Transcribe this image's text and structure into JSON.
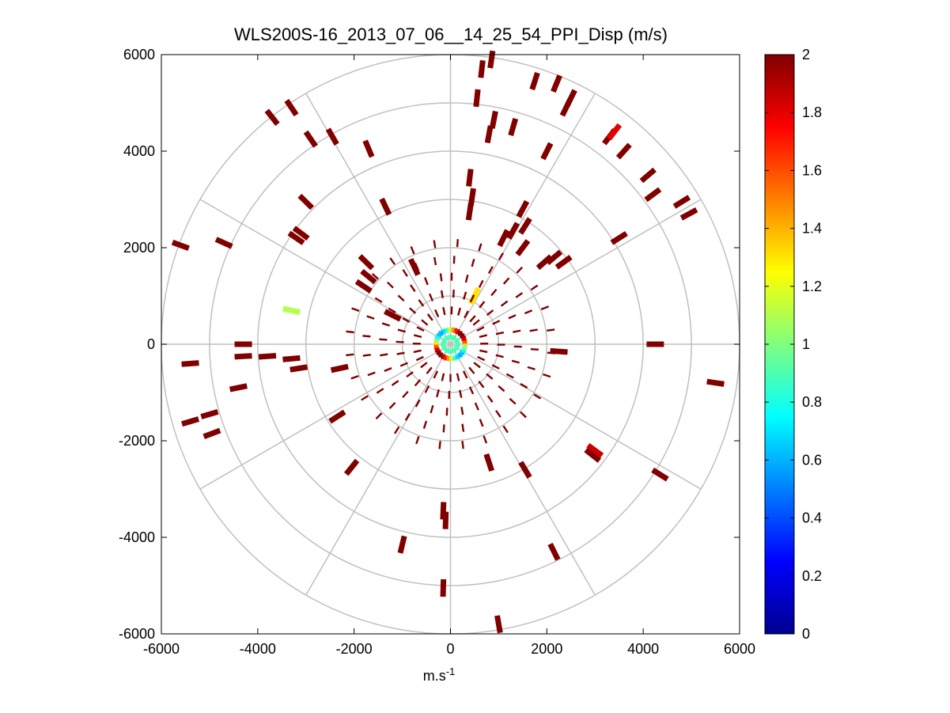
{
  "chart_data": {
    "type": "polar-scatter",
    "title": "WLS200S-16_2013_07_06__14_25_54_PPI_Disp (m/s)",
    "xlabel": "m.s",
    "xlabel_superscript": "-1",
    "ylabel": "",
    "xlim": [
      -6000,
      6000
    ],
    "ylim": [
      -6000,
      6000
    ],
    "xticks": [
      -6000,
      -4000,
      -2000,
      0,
      2000,
      4000,
      6000
    ],
    "yticks": [
      -6000,
      -4000,
      -2000,
      0,
      2000,
      4000,
      6000
    ],
    "xtick_labels": [
      "-6000",
      "-4000",
      "-2000",
      "0",
      "2000",
      "4000",
      "6000"
    ],
    "ytick_labels": [
      "-6000",
      "-4000",
      "-2000",
      "0",
      "2000",
      "4000",
      "6000"
    ],
    "polar_grid": {
      "ring_radii": [
        1000,
        2000,
        3000,
        4000,
        5000,
        6000
      ],
      "spoke_angles_deg": [
        0,
        30,
        60,
        90,
        120,
        150,
        180,
        210,
        240,
        270,
        300,
        330
      ]
    },
    "colorbar": {
      "min": 0,
      "max": 2,
      "ticks": [
        0,
        0.2,
        0.4,
        0.6,
        0.8,
        1,
        1.2,
        1.4,
        1.6,
        1.8,
        2
      ],
      "tick_labels": [
        "0",
        "0.2",
        "0.4",
        "0.6",
        "0.8",
        "1",
        "1.2",
        "1.4",
        "1.6",
        "1.8",
        "2"
      ],
      "colormap": "jet"
    },
    "dark_value": 2.0,
    "bright_features": [
      {
        "x": -3300,
        "y": 700,
        "value": 1.1
      },
      {
        "x": 3400,
        "y": 4400,
        "value": 1.8
      },
      {
        "x": 3000,
        "y": -2200,
        "value": 1.85
      },
      {
        "x": 500,
        "y": 1000,
        "value": 1.3
      }
    ],
    "center_cluster": {
      "x": 0,
      "y": 0,
      "radius": 300,
      "min_value": 0.6,
      "max_value": 2
    },
    "scatter_points": [
      {
        "x": 850,
        "y": 5900
      },
      {
        "x": 650,
        "y": 5700
      },
      {
        "x": 1750,
        "y": 5450
      },
      {
        "x": 2200,
        "y": 5400
      },
      {
        "x": 550,
        "y": 5100
      },
      {
        "x": 2500,
        "y": 5100
      },
      {
        "x": 2400,
        "y": 4900
      },
      {
        "x": 900,
        "y": 4650
      },
      {
        "x": 1300,
        "y": 4500
      },
      {
        "x": 800,
        "y": 4350
      },
      {
        "x": 2000,
        "y": 4000
      },
      {
        "x": 3300,
        "y": 4300
      },
      {
        "x": 3600,
        "y": 4000
      },
      {
        "x": 4100,
        "y": 3500
      },
      {
        "x": 4800,
        "y": 2950
      },
      {
        "x": 4950,
        "y": 2700
      },
      {
        "x": 4200,
        "y": 3100
      },
      {
        "x": 3500,
        "y": 2200
      },
      {
        "x": 2150,
        "y": 1800
      },
      {
        "x": 2350,
        "y": 1700
      },
      {
        "x": 1950,
        "y": 1700
      },
      {
        "x": 400,
        "y": 3450
      },
      {
        "x": 450,
        "y": 3050
      },
      {
        "x": 400,
        "y": 2750
      },
      {
        "x": 1500,
        "y": 2800
      },
      {
        "x": 1550,
        "y": 2450
      },
      {
        "x": 1300,
        "y": 2350
      },
      {
        "x": 1100,
        "y": 2200
      },
      {
        "x": 1500,
        "y": 2000
      },
      {
        "x": 4250,
        "y": 0
      },
      {
        "x": 5500,
        "y": -800
      },
      {
        "x": 2250,
        "y": -150
      },
      {
        "x": 4350,
        "y": -2700
      },
      {
        "x": 2950,
        "y": -2300
      },
      {
        "x": 1550,
        "y": -2600
      },
      {
        "x": 800,
        "y": -2450
      },
      {
        "x": 2150,
        "y": -4300
      },
      {
        "x": 1000,
        "y": -5800
      },
      {
        "x": -150,
        "y": -3450
      },
      {
        "x": -100,
        "y": -3650
      },
      {
        "x": -150,
        "y": -5050
      },
      {
        "x": -1000,
        "y": -4150
      },
      {
        "x": -2050,
        "y": -2550
      },
      {
        "x": -2300,
        "y": -500
      },
      {
        "x": -2350,
        "y": -1500
      },
      {
        "x": -3150,
        "y": -500
      },
      {
        "x": -3300,
        "y": -300
      },
      {
        "x": -3800,
        "y": -250
      },
      {
        "x": -4300,
        "y": -250
      },
      {
        "x": -4300,
        "y": 0
      },
      {
        "x": -4400,
        "y": -900
      },
      {
        "x": -5400,
        "y": -400
      },
      {
        "x": -5400,
        "y": -1600
      },
      {
        "x": -5000,
        "y": -1450
      },
      {
        "x": -4950,
        "y": -1850
      },
      {
        "x": -5600,
        "y": 2050
      },
      {
        "x": -4700,
        "y": 2100
      },
      {
        "x": -3100,
        "y": 2300
      },
      {
        "x": -3200,
        "y": 2200
      },
      {
        "x": -3000,
        "y": 2950
      },
      {
        "x": -2900,
        "y": 4250
      },
      {
        "x": -2450,
        "y": 4300
      },
      {
        "x": -3700,
        "y": 4700
      },
      {
        "x": -3300,
        "y": 4900
      },
      {
        "x": -1700,
        "y": 4050
      },
      {
        "x": -1350,
        "y": 2850
      },
      {
        "x": -1750,
        "y": 1700
      },
      {
        "x": -1700,
        "y": 1400
      },
      {
        "x": -1800,
        "y": 1200
      },
      {
        "x": -750,
        "y": 1600
      },
      {
        "x": -1200,
        "y": 600
      }
    ]
  }
}
